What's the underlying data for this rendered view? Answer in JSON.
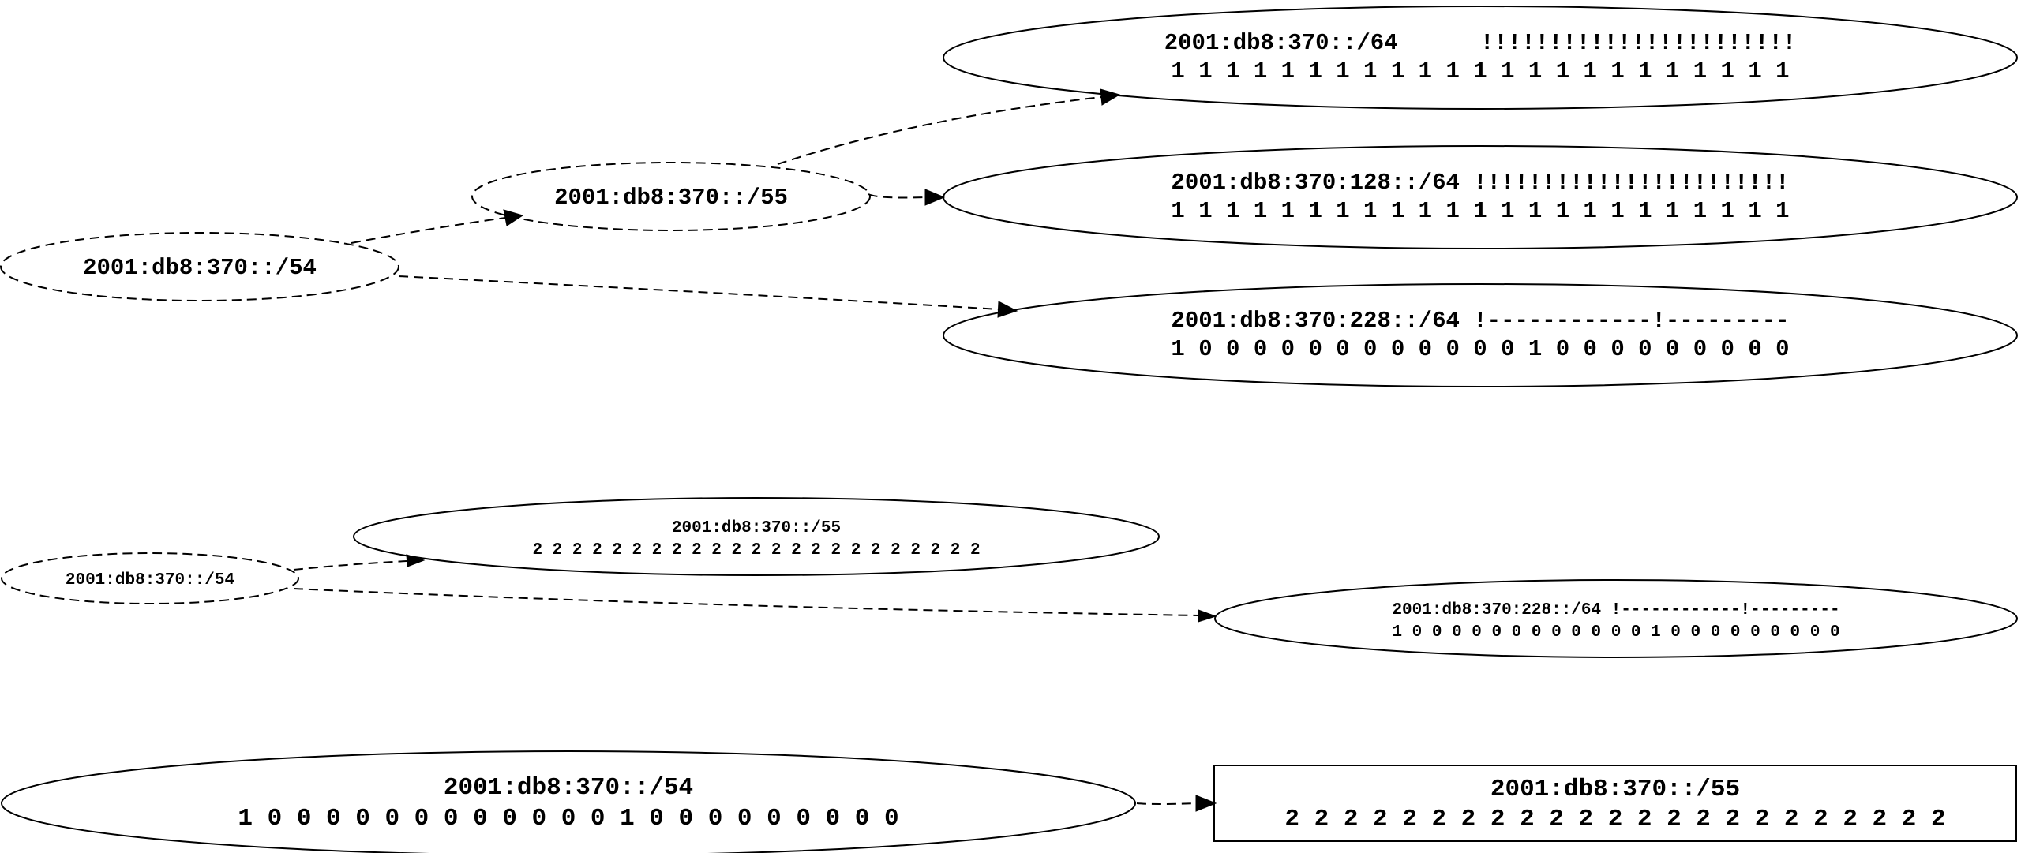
{
  "graph1": {
    "root": {
      "label": "2001:db8:370::/54"
    },
    "mid": {
      "label": "2001:db8:370::/55"
    },
    "leaf_a": {
      "line1": "2001:db8:370::/64      !!!!!!!!!!!!!!!!!!!!!!!",
      "line2": "1 1 1 1 1 1 1 1 1 1 1 1 1 1 1 1 1 1 1 1 1 1 1"
    },
    "leaf_b": {
      "line1": "2001:db8:370:128::/64 !!!!!!!!!!!!!!!!!!!!!!!",
      "line2": "1 1 1 1 1 1 1 1 1 1 1 1 1 1 1 1 1 1 1 1 1 1 1"
    },
    "leaf_c": {
      "line1": "2001:db8:370:228::/64 !------------!---------",
      "line2": "1 0 0 0 0 0 0 0 0 0 0 0 0 1 0 0 0 0 0 0 0 0 0"
    }
  },
  "graph2": {
    "root": {
      "label": "2001:db8:370::/54"
    },
    "leaf_a": {
      "line1": "2001:db8:370::/55",
      "line2": "2 2 2 2 2 2 2 2 2 2 2 2 2 2 2 2 2 2 2 2 2 2 2"
    },
    "leaf_b": {
      "line1": "2001:db8:370:228::/64 !------------!---------",
      "line2": "1 0 0 0 0 0 0 0 0 0 0 0 0 1 0 0 0 0 0 0 0 0 0"
    }
  },
  "graph3": {
    "root": {
      "line1": "2001:db8:370::/54",
      "line2": "1 0 0 0 0 0 0 0 0 0 0 0 0 1 0 0 0 0 0 0 0 0 0"
    },
    "box": {
      "line1": "2001:db8:370::/55",
      "line2": "2 2 2 2 2 2 2 2 2 2 2 2 2 2 2 2 2 2 2 2 2 2 2"
    }
  }
}
